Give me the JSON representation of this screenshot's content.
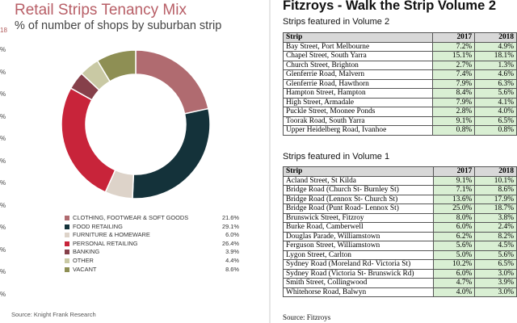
{
  "left_panel": {
    "title": "Retail Strips Tenancy Mix",
    "subtitle": "% of number of shops by suburban strip",
    "source": "Source: Knight Frank Research",
    "cut_label": "18",
    "cut_column": [
      "%",
      "%",
      "%",
      "%",
      "%",
      "%",
      "%",
      "%",
      "%",
      "%",
      "%",
      "%"
    ]
  },
  "chart_data": {
    "type": "pie",
    "variant": "donut",
    "slices": [
      {
        "label": "CLOTHING, FOOTWEAR & SOFT GOODS",
        "value": 21.6,
        "display": "21.6%",
        "color": "#b06b70"
      },
      {
        "label": "FOOD RETAILING",
        "value": 29.1,
        "display": "29.1%",
        "color": "#14323a"
      },
      {
        "label": "FURNITURE & HOMEWARE",
        "value": 6.0,
        "display": "6.0%",
        "color": "#ddd3c9"
      },
      {
        "label": "PERSONAL RETAILING",
        "value": 26.4,
        "display": "26.4%",
        "color": "#c8243a"
      },
      {
        "label": "BANKING",
        "value": 3.9,
        "display": "3.9%",
        "color": "#86404a"
      },
      {
        "label": "OTHER",
        "value": 4.4,
        "display": "4.4%",
        "color": "#c9c9a4"
      },
      {
        "label": "VACANT",
        "value": 8.6,
        "display": "8.6%",
        "color": "#8e8f54"
      }
    ]
  },
  "right_panel": {
    "title": "Fitzroys - Walk the Strip Volume 2",
    "source": "Source: Fitzroys",
    "tables": [
      {
        "heading": "Strips featured in Volume 2",
        "columns": [
          "Strip",
          "2017",
          "2018"
        ],
        "rows": [
          [
            "Bay Street, Port Melbourne",
            "7.2%",
            "4.9%"
          ],
          [
            "Chapel Street, South Yarra",
            "15.1%",
            "18.1%"
          ],
          [
            "Church Street, Brighton",
            "2.7%",
            "1.3%"
          ],
          [
            "Glenferrie Road, Malvern",
            "7.4%",
            "4.6%"
          ],
          [
            "Glenferrie Road, Hawthorn",
            "7.9%",
            "6.3%"
          ],
          [
            "Hampton Street, Hampton",
            "8.4%",
            "5.6%"
          ],
          [
            "High Street, Armadale",
            "7.9%",
            "4.1%"
          ],
          [
            "Puckle Street, Moonee Ponds",
            "2.8%",
            "4.0%"
          ],
          [
            "Toorak Road, South Yarra",
            "9.1%",
            "6.5%"
          ],
          [
            "Upper Heidelberg Road, Ivanhoe",
            "0.8%",
            "0.8%"
          ]
        ]
      },
      {
        "heading": "Strips featured in Volume 1",
        "columns": [
          "Strip",
          "2017",
          "2018"
        ],
        "rows": [
          [
            "Acland Street, St Kilda",
            "9.1%",
            "10.1%"
          ],
          [
            "Bridge Road (Church St- Burnley St)",
            "7.1%",
            "8.6%"
          ],
          [
            "Bridge Road (Lennox St- Church St)",
            "13.6%",
            "17.9%"
          ],
          [
            "Bridge Road (Punt Road- Lennox St)",
            "25.0%",
            "18.7%"
          ],
          [
            "Brunswick Street, Fitzroy",
            "8.0%",
            "3.8%"
          ],
          [
            "Burke Road, Camberwell",
            "6.0%",
            "2.4%"
          ],
          [
            "Douglas Parade, Williamstown",
            "6.2%",
            "8.2%"
          ],
          [
            "Ferguson Street, Williamstown",
            "5.6%",
            "4.5%"
          ],
          [
            "Lygon Street, Carlton",
            "5.0%",
            "5.6%"
          ],
          [
            "Sydney Road (Moreland Rd- Victoria St)",
            "10.2%",
            "6.5%"
          ],
          [
            "Sydney Road (Victoria St- Brunswick Rd)",
            "6.0%",
            "3.0%"
          ],
          [
            "Smith Street, Collingwood",
            "4.7%",
            "3.9%"
          ],
          [
            "Whitehorse Road, Balwyn",
            "4.0%",
            "3.0%"
          ]
        ]
      }
    ]
  }
}
